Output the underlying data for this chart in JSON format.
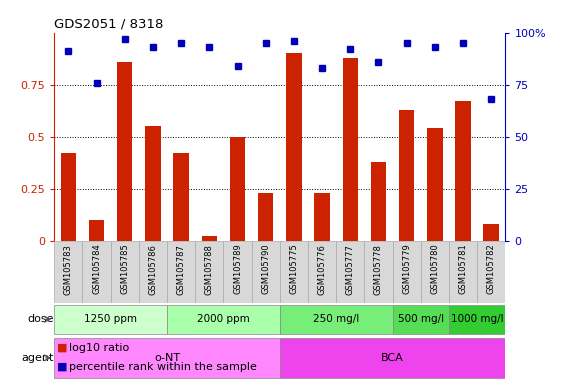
{
  "title": "GDS2051 / 8318",
  "samples": [
    "GSM105783",
    "GSM105784",
    "GSM105785",
    "GSM105786",
    "GSM105787",
    "GSM105788",
    "GSM105789",
    "GSM105790",
    "GSM105775",
    "GSM105776",
    "GSM105777",
    "GSM105778",
    "GSM105779",
    "GSM105780",
    "GSM105781",
    "GSM105782"
  ],
  "log10_ratio": [
    0.42,
    0.1,
    0.86,
    0.55,
    0.42,
    0.02,
    0.5,
    0.23,
    0.9,
    0.23,
    0.88,
    0.38,
    0.63,
    0.54,
    0.67,
    0.08
  ],
  "percentile_rank": [
    91,
    76,
    97,
    93,
    95,
    93,
    84,
    95,
    96,
    83,
    92,
    86,
    95,
    93,
    95,
    68
  ],
  "dose_groups": [
    {
      "label": "1250 ppm",
      "start": 0,
      "end": 4,
      "color": "#ccffcc"
    },
    {
      "label": "2000 ppm",
      "start": 4,
      "end": 8,
      "color": "#aaffaa"
    },
    {
      "label": "250 mg/l",
      "start": 8,
      "end": 12,
      "color": "#77ee77"
    },
    {
      "label": "500 mg/l",
      "start": 12,
      "end": 14,
      "color": "#55dd55"
    },
    {
      "label": "1000 mg/l",
      "start": 14,
      "end": 16,
      "color": "#33cc33"
    }
  ],
  "agent_groups": [
    {
      "label": "o-NT",
      "start": 0,
      "end": 8,
      "color": "#ff88ff"
    },
    {
      "label": "BCA",
      "start": 8,
      "end": 16,
      "color": "#ee44ee"
    }
  ],
  "bar_color": "#cc2200",
  "dot_color": "#0000bb",
  "ylim_left": [
    0,
    1.0
  ],
  "ylim_right": [
    0,
    100
  ],
  "yticks_left": [
    0,
    0.25,
    0.5,
    0.75
  ],
  "yticks_right": [
    0,
    25,
    50,
    75,
    100
  ],
  "bg_color": "#ffffff"
}
